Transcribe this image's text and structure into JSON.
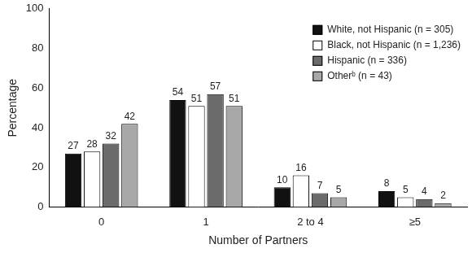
{
  "chart_data": {
    "type": "bar",
    "x_label": "Number of Partners",
    "y_label": "Percentage",
    "categories": [
      "0",
      "1",
      "2 to 4",
      "≥5"
    ],
    "series": [
      {
        "name": "White, not Hispanic (n = 305)",
        "color": "#111111",
        "values": [
          27,
          54,
          10,
          8
        ]
      },
      {
        "name": "Black, not Hispanic (n = 1,236)",
        "color": "#ffffff",
        "values": [
          28,
          51,
          16,
          5
        ]
      },
      {
        "name": "Hispanic (n = 336)",
        "color": "#6b6b6b",
        "values": [
          32,
          57,
          7,
          4
        ]
      },
      {
        "name": "Otherᵇ (n = 43)",
        "color": "#a8a8a8",
        "values": [
          42,
          51,
          5,
          2
        ]
      }
    ],
    "ylim": [
      0,
      100
    ],
    "yticks": [
      0,
      20,
      40,
      60,
      80,
      100
    ],
    "grid": false,
    "legend": "upper right",
    "data_labels": true
  }
}
